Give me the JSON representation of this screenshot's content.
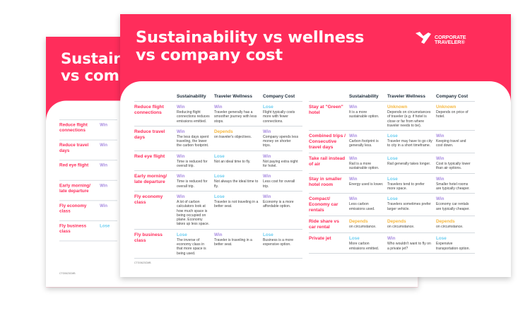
{
  "document": {
    "title_line1": "Sustainability vs wellness",
    "title_line2": "vs company cost",
    "brand_line1": "CORPORATE",
    "brand_line2": "TRAVELER®",
    "footer_code": "CTG0623CMB",
    "colors": {
      "brand": "#ff2d5b",
      "Win": "#a98de0",
      "Lose": "#6ccdf0",
      "Depends": "#f5b740",
      "Unknown": "#f5b740"
    },
    "columns": [
      "Sustainability",
      "Traveler Wellness",
      "Company Cost"
    ],
    "left_rows": [
      {
        "label": "Reduce flight connections",
        "cells": [
          {
            "status": "Win",
            "text": "Reducing flight connections reduces emissions emitted."
          },
          {
            "status": "Win",
            "text": "Traveler generally has a smoother journey with less stops."
          },
          {
            "status": "Lose",
            "text": "Flight typically costs more with fewer connections."
          }
        ]
      },
      {
        "label": "Reduce travel days",
        "cells": [
          {
            "status": "Win",
            "text": "The less days spent traveling, the lower the carbon footprint."
          },
          {
            "status": "Depends",
            "text": "on traveler's objectives."
          },
          {
            "status": "Win",
            "text": "Company spends less money on shorter trips."
          }
        ]
      },
      {
        "label": "Red eye flight",
        "cells": [
          {
            "status": "Win",
            "text": "Time is reduced for overall trip."
          },
          {
            "status": "Lose",
            "text": "Not an ideal time to fly."
          },
          {
            "status": "Win",
            "text": "Not paying extra night for hotel."
          }
        ]
      },
      {
        "label": "Early morning/ late departure",
        "cells": [
          {
            "status": "Win",
            "text": "Time is reduced for overall trip."
          },
          {
            "status": "Lose",
            "text": "Not always the ideal time to fly."
          },
          {
            "status": "Win",
            "text": "Less cost for overall trip."
          }
        ]
      },
      {
        "label": "Fly economy class",
        "cells": [
          {
            "status": "Win",
            "text": "A lot of carbon calculators look at how much space is being occupied on plane. Economy takes up less space."
          },
          {
            "status": "Lose",
            "text": "Traveler is not traveling in a better seat."
          },
          {
            "status": "Win",
            "text": "Economy is a more affordable option."
          }
        ]
      },
      {
        "label": "Fly business class",
        "cells": [
          {
            "status": "Lose",
            "text": "The inverse of economy class in that more space is being used."
          },
          {
            "status": "Win",
            "text": "Traveler is traveling in a better seat."
          },
          {
            "status": "Lose",
            "text": "Business is a more expensive option."
          }
        ]
      }
    ],
    "right_rows": [
      {
        "label": "Stay at \"Green\" hotel",
        "cells": [
          {
            "status": "Win",
            "text": "It is a more sustainable option."
          },
          {
            "status": "Unknown",
            "text": "Depends on circumstances of traveler (e.g. if hotel is close or far from where traveler needs to be)."
          },
          {
            "status": "Unknown",
            "text": "Depends on price of hotel."
          }
        ]
      },
      {
        "label": "Combined trips / Consecutive travel days",
        "cells": [
          {
            "status": "Win",
            "text": "Carbon footprint is generally less."
          },
          {
            "status": "Lose",
            "text": "Traveler may have to go city to city in a short timeframe."
          },
          {
            "status": "Win",
            "text": "Keeping travel and cost down."
          }
        ]
      },
      {
        "label": "Take rail instead of air",
        "cells": [
          {
            "status": "Win",
            "text": "Rail is a more sustainable option."
          },
          {
            "status": "Lose",
            "text": "Rail generally takes longer."
          },
          {
            "status": "Win",
            "text": "Cost is typically lower than air options."
          }
        ]
      },
      {
        "label": "Stay in smaller hotel room",
        "cells": [
          {
            "status": "Win",
            "text": "Energy used is lower."
          },
          {
            "status": "Lose",
            "text": "Travelers tend to prefer more space."
          },
          {
            "status": "Win",
            "text": "Smaller hotel rooms are typically cheaper."
          }
        ]
      },
      {
        "label": "Compact/ Economy car rentals",
        "cells": [
          {
            "status": "Win",
            "text": "Less carbon emissions used."
          },
          {
            "status": "Lose",
            "text": "Travelers sometimes prefer larger vehicle."
          },
          {
            "status": "Win",
            "text": "Economy car rentals are typically cheaper."
          }
        ]
      },
      {
        "label": "Ride share vs car rental",
        "cells": [
          {
            "status": "Depends",
            "text": "on circumstance."
          },
          {
            "status": "Depends",
            "text": "on circumstance."
          },
          {
            "status": "Depends",
            "text": "on circumstance."
          }
        ]
      },
      {
        "label": "Private jet",
        "cells": [
          {
            "status": "Lose",
            "text": "More carbon emissions emitted."
          },
          {
            "status": "Win",
            "text": "Who wouldn't want to fly on a private jet?"
          },
          {
            "status": "Lose",
            "text": "Expensive transportation option."
          }
        ]
      }
    ]
  }
}
